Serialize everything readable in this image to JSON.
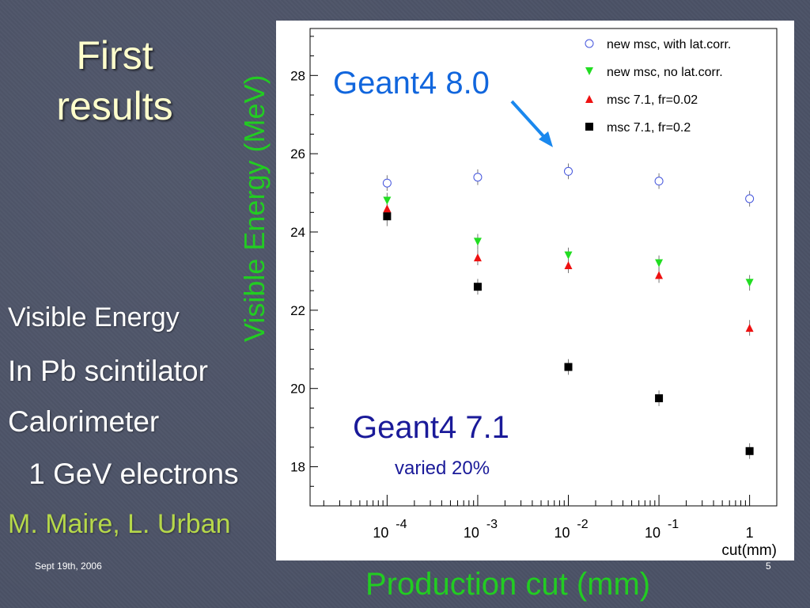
{
  "slide": {
    "title_line1": "First",
    "title_line2": "results",
    "visible_energy": "Visible Energy",
    "in_pb": "In Pb scintilator",
    "calorimeter": "Calorimeter",
    "electrons": " 1 GeV electrons",
    "authors": "M. Maire, L. Urban",
    "date": "Sept 19th, 2006",
    "page": "5",
    "y_title": "Visible Energy (MeV)",
    "x_title": "Production cut (mm)",
    "colors": {
      "title": "#ffffcc",
      "authors": "#b6d84a",
      "axis_titles": "#22cc22"
    }
  },
  "chart_data": {
    "type": "scatter",
    "x_scale": "log",
    "x": [
      0.0001,
      0.001,
      0.01,
      0.1,
      1
    ],
    "x_tick_labels": [
      {
        "base": "10",
        "exp": "-4"
      },
      {
        "base": "10",
        "exp": "-3"
      },
      {
        "base": "10",
        "exp": "-2"
      },
      {
        "base": "10",
        "exp": "-1"
      },
      {
        "base": "1",
        "exp": ""
      }
    ],
    "y_ticks": [
      18,
      20,
      22,
      24,
      26,
      28
    ],
    "ylim": [
      17,
      29.2
    ],
    "xlabel": "cut(mm)",
    "legend_position": "top-right",
    "series": [
      {
        "name": "new msc, with lat.corr.",
        "marker": "open-circle",
        "color": "#4455dd",
        "values": [
          25.25,
          25.4,
          25.55,
          25.3,
          24.85
        ],
        "errors": [
          0.2,
          0.2,
          0.2,
          0.2,
          0.2
        ]
      },
      {
        "name": "new msc, no lat.corr.",
        "marker": "down-triangle",
        "color": "#22dd22",
        "values": [
          24.8,
          23.75,
          23.4,
          23.2,
          22.7
        ],
        "errors": [
          0.2,
          0.2,
          0.2,
          0.2,
          0.2
        ]
      },
      {
        "name": "msc 7.1, fr=0.02",
        "marker": "up-triangle",
        "color": "#ee1111",
        "values": [
          24.6,
          23.35,
          23.15,
          22.9,
          21.55
        ],
        "errors": [
          0.2,
          0.2,
          0.2,
          0.2,
          0.2
        ]
      },
      {
        "name": "msc 7.1, fr=0.2",
        "marker": "square",
        "color": "#000000",
        "values": [
          24.4,
          22.6,
          20.55,
          19.75,
          18.4
        ],
        "errors": [
          0.25,
          0.2,
          0.2,
          0.2,
          0.2
        ]
      }
    ],
    "annotations": [
      {
        "text": "Geant4 8.0",
        "color": "#1166dd"
      },
      {
        "text": "Geant4 7.1",
        "color": "#1a1a99"
      },
      {
        "text": "varied 20%",
        "color": "#1a1a99"
      }
    ]
  }
}
